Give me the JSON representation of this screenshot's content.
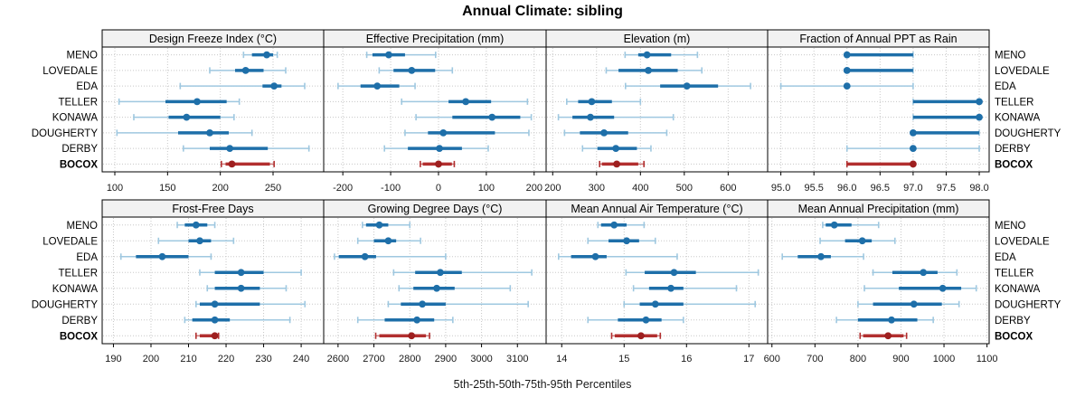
{
  "title": "Annual Climate: sibling",
  "caption": "5th-25th-50th-75th-95th Percentiles",
  "sites": [
    "MENO",
    "LOVEDALE",
    "EDA",
    "TELLER",
    "KONAWA",
    "DOUGHERTY",
    "DERBY",
    "BOCOX"
  ],
  "highlight_site": "BOCOX",
  "colors": {
    "blue_dark": "#1e6fa9",
    "blue_light": "#9fc8e0",
    "blue_dot": "#1e6fa9",
    "red_dark": "#b22f2f",
    "red_light": "#cc7a7a",
    "red_dot": "#9e1f1f",
    "grid": "#c8c8c8",
    "border": "#000000",
    "header_bg": "#f2f2f2",
    "tick_text": "#1a1a1a"
  },
  "chart_data": {
    "type": "dotplot-percentile-trellis",
    "note": "each series row = [5th, 25th, 50th, 75th, 95th] percentiles; site order matches sites[]",
    "legend_position": "none",
    "grid": true,
    "panels": [
      {
        "title": "Design Freeze Index (°C)",
        "row": 0,
        "col": 0,
        "xlim": [
          88,
          298
        ],
        "ticks": [
          100,
          150,
          200,
          250
        ],
        "tick_labels": [
          "100",
          "150",
          "200",
          "250"
        ],
        "values": [
          [
            222,
            230,
            244,
            250,
            254
          ],
          [
            190,
            214,
            224,
            241,
            262
          ],
          [
            162,
            240,
            251,
            258,
            280
          ],
          [
            104,
            148,
            178,
            206,
            218
          ],
          [
            118,
            151,
            168,
            200,
            213
          ],
          [
            102,
            160,
            190,
            208,
            230
          ],
          [
            165,
            190,
            209,
            245,
            284
          ],
          [
            201,
            205,
            211,
            247,
            251
          ]
        ]
      },
      {
        "title": "Effective Precipitation (mm)",
        "row": 0,
        "col": 1,
        "xlim": [
          -240,
          225
        ],
        "ticks": [
          -200,
          -100,
          0,
          100,
          200
        ],
        "tick_labels": [
          "-200",
          "-100",
          "0",
          "100",
          "200"
        ],
        "values": [
          [
            -150,
            -138,
            -104,
            -70,
            -6
          ],
          [
            -124,
            -94,
            -56,
            -7,
            29
          ],
          [
            -210,
            -163,
            -128,
            -82,
            -49
          ],
          [
            -77,
            21,
            57,
            110,
            186
          ],
          [
            -47,
            29,
            112,
            171,
            194
          ],
          [
            -70,
            -22,
            10,
            118,
            189
          ],
          [
            -113,
            -64,
            2,
            49,
            104
          ],
          [
            -38,
            -33,
            0,
            28,
            33
          ]
        ]
      },
      {
        "title": "Elevation (m)",
        "row": 0,
        "col": 2,
        "xlim": [
          185,
          690
        ],
        "ticks": [
          200,
          300,
          400,
          500,
          600
        ],
        "tick_labels": [
          "200",
          "300",
          "400",
          "500",
          "600"
        ],
        "values": [
          [
            365,
            395,
            415,
            470,
            530
          ],
          [
            322,
            350,
            418,
            485,
            540
          ],
          [
            366,
            445,
            506,
            577,
            651
          ],
          [
            232,
            258,
            289,
            335,
            400
          ],
          [
            213,
            245,
            286,
            340,
            475
          ],
          [
            227,
            262,
            317,
            372,
            460
          ],
          [
            268,
            302,
            344,
            392,
            424
          ],
          [
            307,
            312,
            346,
            395,
            408
          ]
        ]
      },
      {
        "title": "Fraction of Annual PPT as Rain",
        "row": 0,
        "col": 3,
        "xlim": [
          94.8,
          98.15
        ],
        "ticks": [
          95.0,
          95.5,
          96.0,
          96.5,
          97.0,
          97.5,
          98.0
        ],
        "tick_labels": [
          "95.0",
          "95.5",
          "96.0",
          "96.5",
          "97.0",
          "97.5",
          "98.0"
        ],
        "values": [
          [
            96,
            96,
            96,
            97,
            97
          ],
          [
            96,
            96,
            96,
            97,
            97
          ],
          [
            95,
            96,
            96,
            96,
            97
          ],
          [
            97,
            97,
            98,
            98,
            98
          ],
          [
            97,
            97,
            98,
            98,
            98
          ],
          [
            97,
            97,
            97,
            98,
            98
          ],
          [
            96,
            97,
            97,
            97,
            98
          ],
          [
            96,
            96,
            97,
            97,
            97
          ]
        ]
      },
      {
        "title": "Frost-Free Days",
        "row": 1,
        "col": 0,
        "xlim": [
          187,
          246
        ],
        "ticks": [
          190,
          200,
          210,
          220,
          230,
          240
        ],
        "tick_labels": [
          "190",
          "200",
          "210",
          "220",
          "230",
          "240"
        ],
        "values": [
          [
            207,
            209,
            212,
            215,
            217
          ],
          [
            202,
            210,
            213,
            216,
            222
          ],
          [
            192,
            196,
            203,
            210,
            216
          ],
          [
            213,
            217,
            224,
            230,
            240
          ],
          [
            215,
            217,
            224,
            229,
            236
          ],
          [
            212,
            213,
            217,
            229,
            241
          ],
          [
            209,
            211,
            217,
            221,
            237
          ],
          [
            212,
            213,
            217,
            218,
            218
          ]
        ]
      },
      {
        "title": "Growing Degree Days (°C)",
        "row": 1,
        "col": 1,
        "xlim": [
          2560,
          3180
        ],
        "ticks": [
          2600,
          2700,
          2800,
          2900,
          3000,
          3100
        ],
        "tick_labels": [
          "2600",
          "2700",
          "2800",
          "2900",
          "3000",
          "3100"
        ],
        "values": [
          [
            2668,
            2678,
            2715,
            2740,
            2800
          ],
          [
            2655,
            2700,
            2740,
            2762,
            2830
          ],
          [
            2590,
            2602,
            2675,
            2706,
            2900
          ],
          [
            2755,
            2815,
            2885,
            2945,
            3140
          ],
          [
            2770,
            2810,
            2875,
            2925,
            3080
          ],
          [
            2740,
            2775,
            2835,
            2900,
            3130
          ],
          [
            2655,
            2730,
            2820,
            2868,
            2920
          ],
          [
            2705,
            2715,
            2805,
            2845,
            2855
          ]
        ]
      },
      {
        "title": "Mean Annual Air Temperature (°C)",
        "row": 1,
        "col": 2,
        "xlim": [
          13.75,
          17.3
        ],
        "ticks": [
          14,
          15,
          16,
          17
        ],
        "tick_labels": [
          "14",
          "15",
          "16",
          "17"
        ],
        "values": [
          [
            14.58,
            14.63,
            14.84,
            15.04,
            15.32
          ],
          [
            14.42,
            14.75,
            15.04,
            15.24,
            15.5
          ],
          [
            13.95,
            14.15,
            14.54,
            14.72,
            15.85
          ],
          [
            15.03,
            15.33,
            15.8,
            16.15,
            17.15
          ],
          [
            15.15,
            15.4,
            15.75,
            15.95,
            16.8
          ],
          [
            15.0,
            15.25,
            15.5,
            15.95,
            17.1
          ],
          [
            14.42,
            14.9,
            15.35,
            15.6,
            15.95
          ],
          [
            14.8,
            14.85,
            15.27,
            15.53,
            15.58
          ]
        ]
      },
      {
        "title": "Mean Annual Precipitation (mm)",
        "row": 1,
        "col": 3,
        "xlim": [
          590,
          1105
        ],
        "ticks": [
          600,
          700,
          800,
          900,
          1000,
          1100
        ],
        "tick_labels": [
          "600",
          "700",
          "800",
          "900",
          "1000",
          "1100"
        ],
        "values": [
          [
            718,
            725,
            745,
            785,
            848
          ],
          [
            712,
            770,
            810,
            832,
            886
          ],
          [
            624,
            660,
            714,
            737,
            813
          ],
          [
            835,
            880,
            952,
            985,
            1030
          ],
          [
            815,
            895,
            997,
            1040,
            1075
          ],
          [
            800,
            835,
            930,
            995,
            1035
          ],
          [
            750,
            800,
            878,
            938,
            975
          ],
          [
            805,
            812,
            870,
            906,
            913
          ]
        ]
      }
    ]
  }
}
